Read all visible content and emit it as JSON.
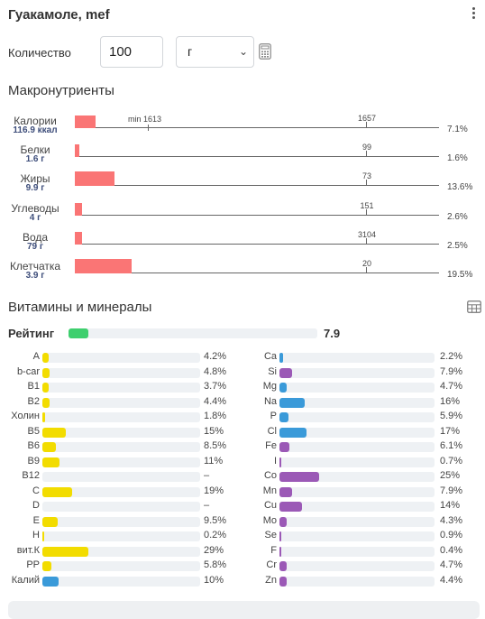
{
  "header": {
    "title": "Гуакамоле, mef",
    "menu_icon": "more-vertical-icon"
  },
  "quantity": {
    "label": "Количество",
    "value": "100",
    "unit": "г",
    "calculator_icon": "calculator-icon"
  },
  "macros": {
    "title": "Макронутриенты",
    "min_label": "min 1613",
    "rows": [
      {
        "name": "Калории",
        "value": "116.9 ккал",
        "norm": "1657",
        "pct": "7.1%",
        "fraction": 0.071
      },
      {
        "name": "Белки",
        "value": "1.6 г",
        "norm": "99",
        "pct": "1.6%",
        "fraction": 0.016
      },
      {
        "name": "Жиры",
        "value": "9.9 г",
        "norm": "73",
        "pct": "13.6%",
        "fraction": 0.136
      },
      {
        "name": "Углеводы",
        "value": "4 г",
        "norm": "151",
        "pct": "2.6%",
        "fraction": 0.026
      },
      {
        "name": "Вода",
        "value": "79 г",
        "norm": "3104",
        "pct": "2.5%",
        "fraction": 0.025
      },
      {
        "name": "Клетчатка",
        "value": "3.9 г",
        "norm": "20",
        "pct": "19.5%",
        "fraction": 0.195
      }
    ],
    "bar_color": "#fa7575"
  },
  "vitamins": {
    "title": "Витамины и минералы",
    "table_icon": "table-grid-icon",
    "rating_label": "Рейтинг",
    "rating_value": "7.9",
    "rating_fraction": 0.079,
    "rating_color": "#3ecf6e",
    "vitamin_color": "#f2dc00",
    "mineral_color_blue": "#3a9ad9",
    "mineral_color_purple": "#9b59b6",
    "left": [
      {
        "name": "A",
        "pct": "4.2%",
        "v": 4.2
      },
      {
        "name": "b-car",
        "pct": "4.8%",
        "v": 4.8
      },
      {
        "name": "B1",
        "pct": "3.7%",
        "v": 3.7
      },
      {
        "name": "B2",
        "pct": "4.4%",
        "v": 4.4
      },
      {
        "name": "Холин",
        "pct": "1.8%",
        "v": 1.8
      },
      {
        "name": "B5",
        "pct": "15%",
        "v": 15
      },
      {
        "name": "B6",
        "pct": "8.5%",
        "v": 8.5
      },
      {
        "name": "B9",
        "pct": "11%",
        "v": 11
      },
      {
        "name": "B12",
        "pct": "–",
        "v": 0
      },
      {
        "name": "C",
        "pct": "19%",
        "v": 19
      },
      {
        "name": "D",
        "pct": "–",
        "v": 0
      },
      {
        "name": "E",
        "pct": "9.5%",
        "v": 9.5
      },
      {
        "name": "H",
        "pct": "0.2%",
        "v": 0.2
      },
      {
        "name": "вит.К",
        "pct": "29%",
        "v": 29
      },
      {
        "name": "PP",
        "pct": "5.8%",
        "v": 5.8
      },
      {
        "name": "Калий",
        "pct": "10%",
        "v": 10,
        "color": "blue"
      }
    ],
    "right": [
      {
        "name": "Ca",
        "pct": "2.2%",
        "v": 2.2,
        "color": "blue"
      },
      {
        "name": "Si",
        "pct": "7.9%",
        "v": 7.9,
        "color": "purple"
      },
      {
        "name": "Mg",
        "pct": "4.7%",
        "v": 4.7,
        "color": "blue"
      },
      {
        "name": "Na",
        "pct": "16%",
        "v": 16,
        "color": "blue"
      },
      {
        "name": "P",
        "pct": "5.9%",
        "v": 5.9,
        "color": "blue"
      },
      {
        "name": "Cl",
        "pct": "17%",
        "v": 17,
        "color": "blue"
      },
      {
        "name": "Fe",
        "pct": "6.1%",
        "v": 6.1,
        "color": "purple"
      },
      {
        "name": "I",
        "pct": "0.7%",
        "v": 0.7,
        "color": "purple"
      },
      {
        "name": "Co",
        "pct": "25%",
        "v": 25,
        "color": "purple"
      },
      {
        "name": "Mn",
        "pct": "7.9%",
        "v": 7.9,
        "color": "purple"
      },
      {
        "name": "Cu",
        "pct": "14%",
        "v": 14,
        "color": "purple"
      },
      {
        "name": "Mo",
        "pct": "4.3%",
        "v": 4.3,
        "color": "purple"
      },
      {
        "name": "Se",
        "pct": "0.9%",
        "v": 0.9,
        "color": "purple"
      },
      {
        "name": "F",
        "pct": "0.4%",
        "v": 0.4,
        "color": "purple"
      },
      {
        "name": "Cr",
        "pct": "4.7%",
        "v": 4.7,
        "color": "purple"
      },
      {
        "name": "Zn",
        "pct": "4.4%",
        "v": 4.4,
        "color": "purple"
      }
    ]
  }
}
